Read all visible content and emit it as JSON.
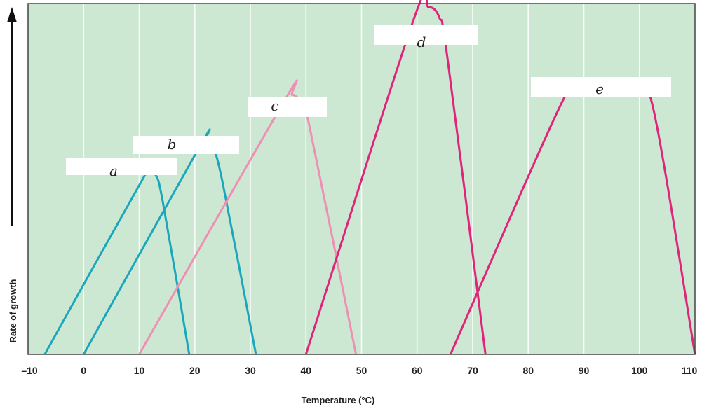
{
  "chart_data": {
    "type": "line",
    "title": "",
    "xlabel": "Temperature (°C)",
    "ylabel": "Rate of growth",
    "xlim": [
      -10,
      110
    ],
    "ylim": [
      0,
      1
    ],
    "x_ticks": [
      -10,
      0,
      10,
      20,
      30,
      40,
      50,
      60,
      70,
      80,
      90,
      100,
      110
    ],
    "grid": true,
    "legend": "none",
    "colors": {
      "plot_background": "#cde8d2",
      "grid": "#ffffff",
      "frame": "#444444",
      "teal": "#1aa7bb",
      "pink": "#ef8fb4",
      "magenta": "#e0247a",
      "label_box": "#ffffff"
    },
    "series": [
      {
        "name": "a",
        "color": "teal",
        "points": [
          [
            -7,
            0
          ],
          [
            11,
            0.51
          ],
          [
            12,
            0.52
          ],
          [
            13,
            0.51
          ],
          [
            14.3,
            0.43
          ],
          [
            19,
            0
          ]
        ]
      },
      {
        "name": "b",
        "color": "teal",
        "points": [
          [
            0,
            0
          ],
          [
            20.8,
            0.59
          ],
          [
            22,
            0.61
          ],
          [
            23.2,
            0.59
          ],
          [
            25,
            0.49
          ],
          [
            31,
            0
          ]
        ]
      },
      {
        "name": "c",
        "color": "pink",
        "points": [
          [
            10,
            0
          ],
          [
            36,
            0.72
          ],
          [
            37.5,
            0.74
          ],
          [
            39,
            0.72
          ],
          [
            40.5,
            0.66
          ],
          [
            49,
            0
          ]
        ]
      },
      {
        "name": "d",
        "color": "magenta",
        "points": [
          [
            40,
            0
          ],
          [
            59.5,
            0.96
          ],
          [
            62,
            0.99
          ],
          [
            64,
            0.96
          ],
          [
            65.5,
            0.84
          ],
          [
            72.3,
            0
          ]
        ]
      },
      {
        "name": "e",
        "color": "magenta",
        "points": [
          [
            66,
            0
          ],
          [
            85.5,
            0.7
          ],
          [
            89,
            0.76
          ],
          [
            94,
            0.78
          ],
          [
            99,
            0.76
          ],
          [
            102.5,
            0.7
          ],
          [
            110,
            0
          ]
        ]
      }
    ]
  }
}
